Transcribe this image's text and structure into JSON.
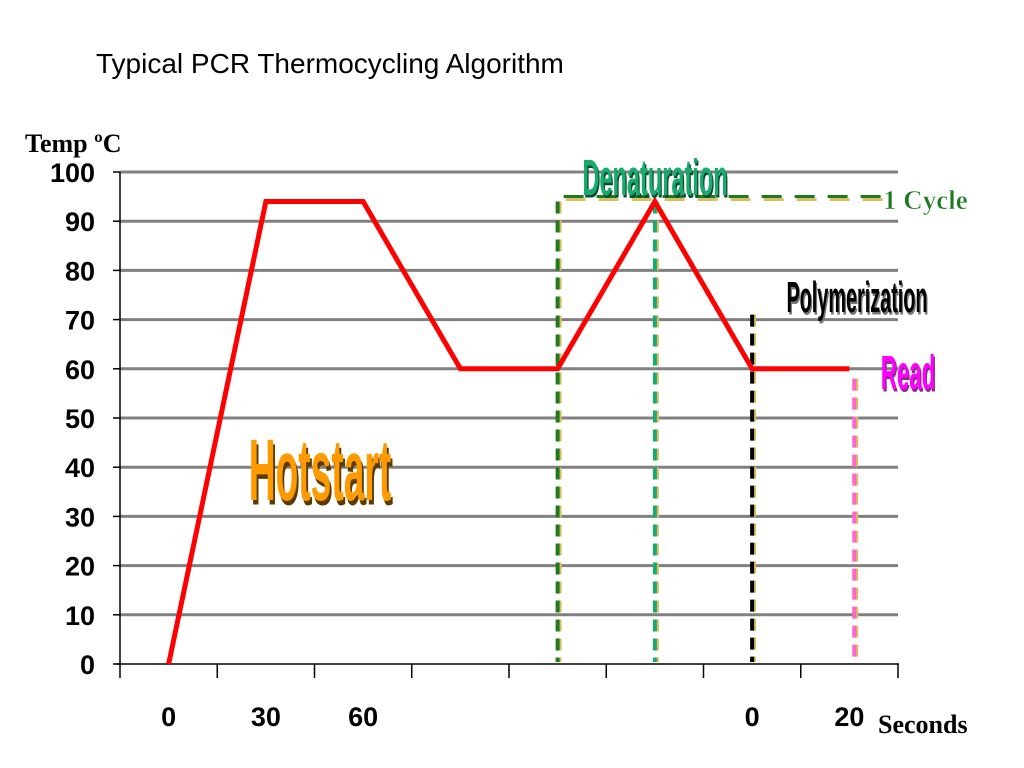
{
  "title": "Typical PCR Thermocycling Algorithm",
  "chart_data": {
    "type": "line",
    "title": "Typical PCR Thermocycling Algorithm",
    "ylabel": "Temp ºC",
    "xlabel": "Seconds",
    "ylim": [
      0,
      100
    ],
    "yticks": [
      0,
      10,
      20,
      30,
      40,
      50,
      60,
      70,
      80,
      90,
      100
    ],
    "grid": true,
    "x_tick_labels": [
      {
        "index": 0.5,
        "label": "0"
      },
      {
        "index": 1.5,
        "label": "30"
      },
      {
        "index": 2.5,
        "label": "60"
      },
      {
        "index": 6.5,
        "label": "0"
      },
      {
        "index": 7.5,
        "label": "20"
      }
    ],
    "series": [
      {
        "color": "#ff0000",
        "points": [
          {
            "x": 0.5,
            "y": 0
          },
          {
            "x": 1.5,
            "y": 94
          },
          {
            "x": 2.5,
            "y": 94
          },
          {
            "x": 3.5,
            "y": 60
          },
          {
            "x": 4.5,
            "y": 60
          },
          {
            "x": 5.5,
            "y": 94
          },
          {
            "x": 6.5,
            "y": 60
          },
          {
            "x": 7.5,
            "y": 60
          }
        ]
      }
    ],
    "markers": [
      {
        "x": 4.5,
        "color": "#1e7a1e",
        "y_top": 94
      },
      {
        "x": 5.5,
        "color": "#1aaa6e",
        "y_top": 94
      },
      {
        "x": 6.5,
        "color": "#000000",
        "y_top": 71
      },
      {
        "x": 7.55,
        "color": "#ff66cc",
        "y_top": 58
      }
    ],
    "cycle_line": {
      "color": "#1e7a1e",
      "y": 94,
      "x_start": 4.5,
      "x_end": 7.9
    },
    "annotations": [
      {
        "text": "Hotstart",
        "color": "#ff9900"
      },
      {
        "text": "Denaturation",
        "color": "#1aaa6e"
      },
      {
        "text": "1 Cycle",
        "color": "#1e7a1e"
      },
      {
        "text": "Polymerization",
        "color": "#000000"
      },
      {
        "text": "Read",
        "color": "#ff00ff"
      }
    ]
  }
}
